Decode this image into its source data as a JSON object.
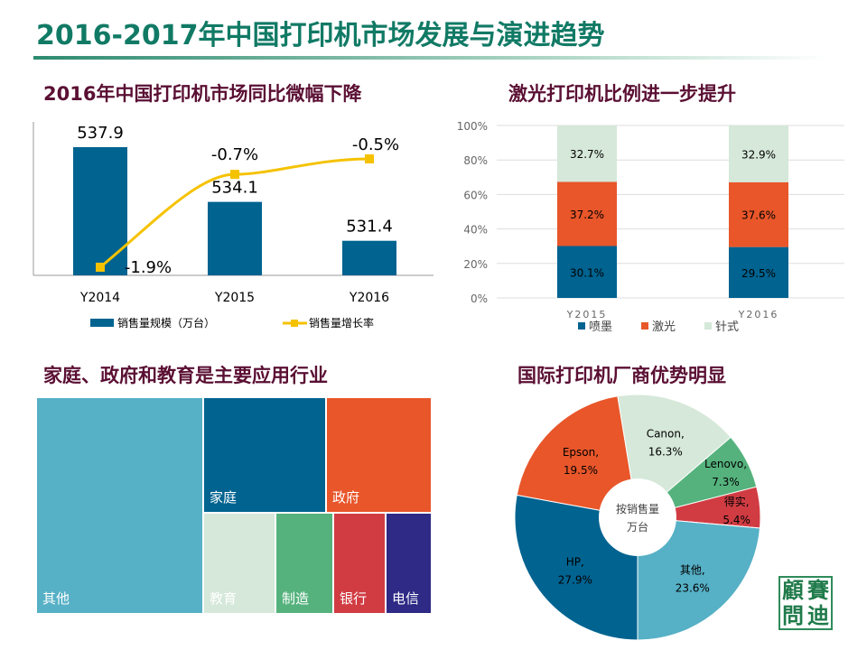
{
  "title": "2016-2017年中国打印机市场发展与演进趋势",
  "chart_data": [
    {
      "type": "bar+line",
      "title": "2016年中国打印机市场同比微幅下降",
      "categories": [
        "Y2014",
        "Y2015",
        "Y2016"
      ],
      "series": [
        {
          "name": "销售量规模（万台）",
          "type": "bar",
          "values": [
            537.9,
            534.1,
            531.4
          ],
          "labels": [
            "537.9",
            "534.1",
            "531.4"
          ]
        },
        {
          "name": "销售量增长率",
          "type": "line",
          "values": [
            -1.9,
            -0.7,
            -0.5
          ],
          "labels": [
            "-1.9%",
            "-0.7%",
            "-0.5%"
          ]
        }
      ],
      "colors": {
        "bar": "#006390",
        "line": "#f5c200"
      },
      "legend": "bottom"
    },
    {
      "type": "stacked-bar",
      "title": "激光打印机比例进一步提升",
      "categories": [
        "Y2015",
        "Y2016"
      ],
      "yticks": [
        "0%",
        "20%",
        "40%",
        "60%",
        "80%",
        "100%"
      ],
      "ylim": [
        0,
        100
      ],
      "series": [
        {
          "name": "喷墨",
          "values": [
            30.1,
            29.5
          ],
          "labels": [
            "30.1%",
            "29.5%"
          ],
          "color": "#006390"
        },
        {
          "name": "激光",
          "values": [
            37.2,
            37.6
          ],
          "labels": [
            "37.2%",
            "37.6%"
          ],
          "color": "#e8562a"
        },
        {
          "name": "针式",
          "values": [
            32.7,
            32.9
          ],
          "labels": [
            "32.7%",
            "32.9%"
          ],
          "color": "#d5e8d9"
        }
      ],
      "legend": "bottom"
    },
    {
      "type": "treemap",
      "title": "家庭、政府和教育是主要应用行业",
      "items": [
        {
          "label": "其他",
          "color": "#56b0c6"
        },
        {
          "label": "家庭",
          "color": "#006390"
        },
        {
          "label": "政府",
          "color": "#e8562a"
        },
        {
          "label": "教育",
          "color": "#d5e8d9"
        },
        {
          "label": "制造",
          "color": "#55b27d"
        },
        {
          "label": "银行",
          "color": "#d13c43"
        },
        {
          "label": "电信",
          "color": "#2e2a86"
        }
      ]
    },
    {
      "type": "pie",
      "title": "国际打印机厂商优势明显",
      "center_label": [
        "按销售量",
        "万台"
      ],
      "slices": [
        {
          "name": "HP",
          "value": 27.9,
          "label": "27.9%",
          "color": "#006390"
        },
        {
          "name": "Epson",
          "value": 19.5,
          "label": "19.5%",
          "color": "#e8562a"
        },
        {
          "name": "Canon",
          "value": 16.3,
          "label": "16.3%",
          "color": "#d5e8d9"
        },
        {
          "name": "Lenovo",
          "value": 7.3,
          "label": "7.3%",
          "color": "#55b27d"
        },
        {
          "name": "得实",
          "value": 5.4,
          "label": "5.4%",
          "color": "#d13c43"
        },
        {
          "name": "其他",
          "value": 23.6,
          "label": "23.6%",
          "color": "#56b0c6"
        }
      ]
    }
  ],
  "logo": "賽迪顧問"
}
